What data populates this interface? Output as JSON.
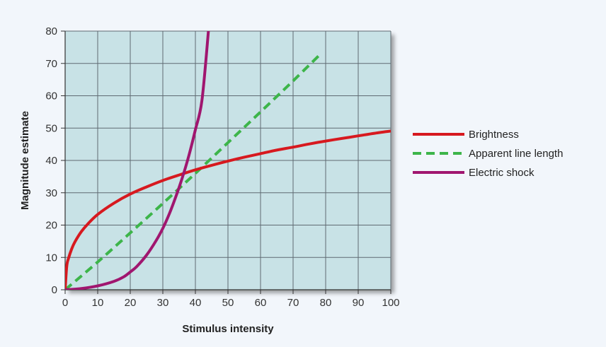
{
  "chart_data": {
    "type": "line",
    "title": "",
    "xlabel": "Stimulus intensity",
    "ylabel": "Magnitude estimate",
    "xlim": [
      0,
      100
    ],
    "ylim": [
      0,
      80
    ],
    "x_ticks": [
      0,
      10,
      20,
      30,
      40,
      50,
      60,
      70,
      80,
      90,
      100
    ],
    "y_ticks": [
      0,
      10,
      20,
      30,
      40,
      50,
      60,
      70,
      80
    ],
    "grid": true,
    "legend_position": "right",
    "series": [
      {
        "name": "Brightness",
        "color": "#d7191f",
        "dash": "solid",
        "x": [
          0,
          0.5,
          1,
          2,
          3,
          5,
          7,
          10,
          15,
          20,
          25,
          30,
          35,
          40,
          45,
          50,
          55,
          60,
          65,
          70,
          75,
          80,
          85,
          90,
          95,
          100
        ],
        "y": [
          0,
          7.3,
          9.6,
          12.6,
          14.8,
          18.0,
          20.4,
          23.3,
          26.8,
          29.6,
          31.8,
          33.8,
          35.5,
          37.1,
          38.5,
          39.8,
          41.0,
          42.1,
          43.2,
          44.1,
          45.1,
          46.0,
          46.8,
          47.6,
          48.4,
          49.1
        ]
      },
      {
        "name": "Apparent line length",
        "color": "#3db54a",
        "dash": "dashed",
        "x": [
          0,
          10,
          20,
          30,
          40,
          50,
          60,
          70,
          78
        ],
        "y": [
          0,
          8.6,
          17.6,
          26.7,
          36.0,
          45.5,
          55.0,
          64.6,
          72.5
        ]
      },
      {
        "name": "Electric shock",
        "color": "#a0166f",
        "dash": "solid",
        "x": [
          0,
          5,
          10,
          15,
          18,
          20,
          22,
          25,
          28,
          30,
          32,
          34,
          36,
          38,
          40,
          42,
          44
        ],
        "y": [
          0,
          0.4,
          1.2,
          2.6,
          4.0,
          5.5,
          7.2,
          10.7,
          15.3,
          19.0,
          23.5,
          28.8,
          34.7,
          41.5,
          49.5,
          58.5,
          80
        ]
      }
    ]
  }
}
